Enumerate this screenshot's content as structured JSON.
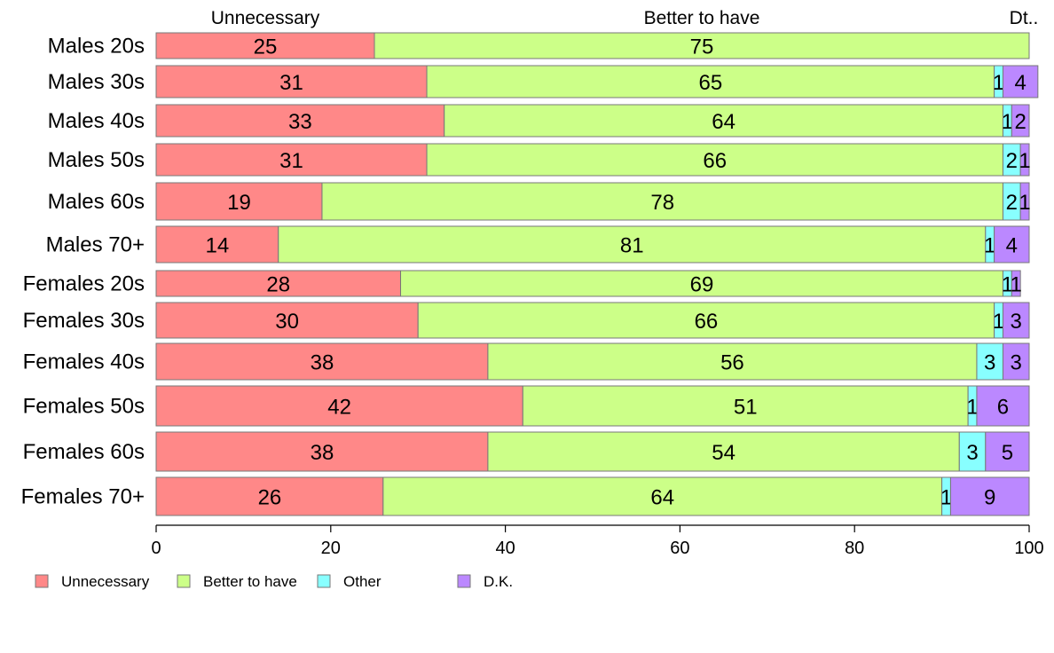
{
  "chart_data": {
    "type": "bar",
    "orientation": "horizontal",
    "stacked": true,
    "categories": [
      "Males 20s",
      "Males 30s",
      "Males 40s",
      "Males 50s",
      "Males 60s",
      "Males 70+",
      "Females 20s",
      "Females 30s",
      "Females 40s",
      "Females 50s",
      "Females 60s",
      "Females 70+"
    ],
    "series": [
      {
        "name": "Unnecessary",
        "color": "#ff8888",
        "values": [
          25,
          31,
          33,
          31,
          19,
          14,
          28,
          30,
          38,
          42,
          38,
          26
        ],
        "value_labels": [
          "25",
          "31",
          "33",
          "31",
          "19",
          "14",
          "28",
          "30",
          "38",
          "42",
          "38",
          "26"
        ]
      },
      {
        "name": "Better to have",
        "color": "#ccff88",
        "values": [
          75,
          65,
          64,
          66,
          78,
          81,
          69,
          66,
          56,
          51,
          54,
          64
        ],
        "value_labels": [
          "75",
          "65",
          "64",
          "66",
          "78",
          "81",
          "69",
          "66",
          "56",
          "51",
          "54",
          "64"
        ]
      },
      {
        "name": "Other",
        "color": "#88ffff",
        "values": [
          0,
          1,
          1,
          2,
          2,
          1,
          1,
          1,
          3,
          1,
          3,
          1
        ],
        "value_labels": [
          "",
          "1",
          "1",
          "2",
          "2",
          "1",
          "1",
          "1",
          "3",
          "1",
          "3",
          "1"
        ]
      },
      {
        "name": "D.K.",
        "color": "#bb88ff",
        "values": [
          0,
          4,
          2,
          1,
          1,
          4,
          1,
          3,
          3,
          6,
          5,
          9
        ],
        "value_labels": [
          "",
          "4",
          "2",
          "1",
          "1",
          "4",
          "1",
          "3",
          "3",
          "6",
          "5",
          "9"
        ]
      }
    ],
    "top_labels": [
      "Unnecessary",
      "Better to have",
      "Dt.."
    ],
    "xlim": [
      0,
      100
    ],
    "xticks": [
      0,
      20,
      40,
      60,
      80,
      100
    ],
    "xtick_labels": [
      "0",
      "20",
      "40",
      "60",
      "80",
      "100"
    ],
    "grid": false,
    "legend_position": "bottom-left"
  }
}
